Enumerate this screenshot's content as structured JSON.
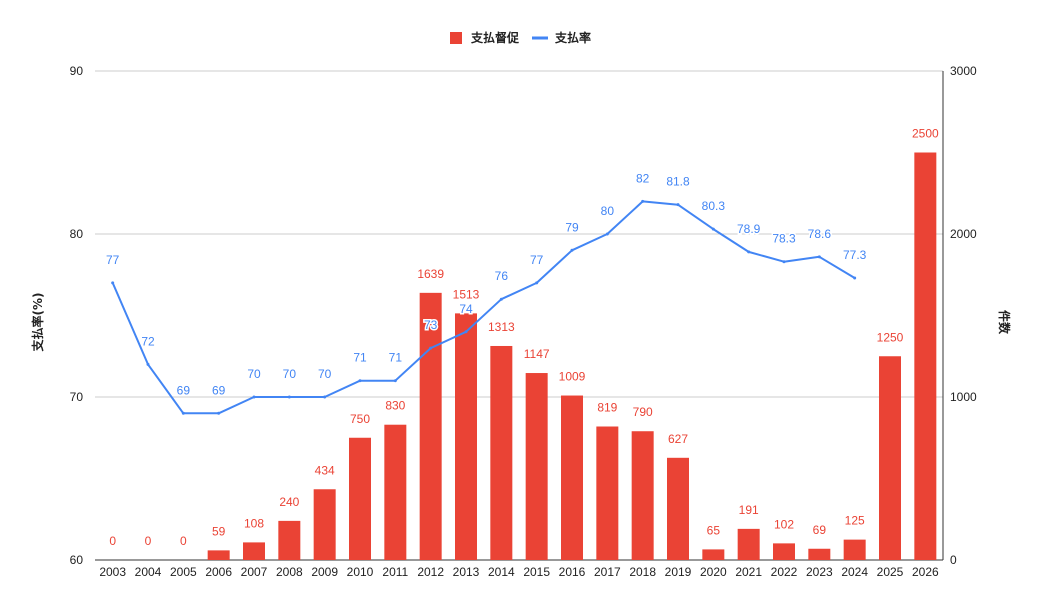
{
  "chart_data": {
    "type": "bar",
    "categories": [
      "2003",
      "2004",
      "2005",
      "2006",
      "2007",
      "2008",
      "2009",
      "2010",
      "2011",
      "2012",
      "2013",
      "2014",
      "2015",
      "2016",
      "2017",
      "2018",
      "2019",
      "2020",
      "2021",
      "2022",
      "2023",
      "2024",
      "2025",
      "2026"
    ],
    "series": [
      {
        "name": "支払督促",
        "type": "bar",
        "axis": "right",
        "color": "#ea4335",
        "values": [
          0,
          0,
          0,
          59,
          108,
          240,
          434,
          750,
          830,
          1639,
          1513,
          1313,
          1147,
          1009,
          819,
          790,
          627,
          65,
          191,
          102,
          69,
          125,
          1250,
          2500
        ],
        "labels": [
          "0",
          "0",
          "0",
          "59",
          "108",
          "240",
          "434",
          "750",
          "830",
          "1639",
          "1513",
          "1313",
          "1147",
          "1009",
          "819",
          "790",
          "627",
          "65",
          "191",
          "102",
          "69",
          "125",
          "1250",
          "2500"
        ]
      },
      {
        "name": "支払率",
        "type": "line",
        "axis": "left",
        "color": "#4285f4",
        "values": [
          77,
          72,
          69,
          69,
          70,
          70,
          70,
          71,
          71,
          73,
          74,
          76,
          77,
          79,
          80,
          82,
          81.8,
          80.3,
          78.9,
          78.3,
          78.6,
          77.3,
          null,
          null
        ],
        "labels": [
          "77",
          "72",
          "69",
          "69",
          "70",
          "70",
          "70",
          "71",
          "71",
          "73",
          "74",
          "76",
          "77",
          "79",
          "80",
          "82",
          "81.8",
          "80.3",
          "78.9",
          "78.3",
          "78.6",
          "77.3",
          "",
          ""
        ]
      }
    ],
    "y_left": {
      "label": "支払率(%)",
      "min": 60,
      "max": 90,
      "ticks": [
        "60",
        "70",
        "80",
        "90"
      ]
    },
    "y_right": {
      "label": "件数",
      "min": 0,
      "max": 3000,
      "ticks": [
        "0",
        "1000",
        "2000",
        "3000"
      ]
    },
    "legend_position": "top-center",
    "grid": true
  }
}
